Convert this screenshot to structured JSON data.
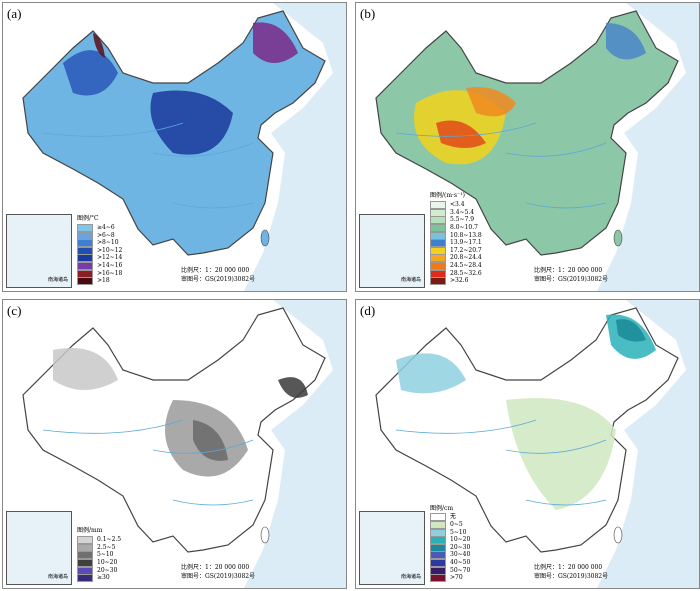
{
  "scale_text": "比例尺：1：20 000 000",
  "approval_text": "审图号：GS(2019)3082号",
  "inset_label": "南海诸岛",
  "panels": [
    {
      "label": "(a)",
      "legend_title": "图例/°C",
      "base": "#6fb5e3",
      "accent": [
        "#2a57b8",
        "#1a3a9e",
        "#7b2a8a",
        "#5a0f1a"
      ],
      "legend": [
        [
          "≥4~6",
          "#7cc6ec"
        ],
        [
          ">6~8",
          "#6aa3dd"
        ],
        [
          ">8~10",
          "#3f7fd0"
        ],
        [
          ">10~12",
          "#1f4fb0"
        ],
        [
          ">12~14",
          "#1a3aa0"
        ],
        [
          ">14~16",
          "#7a3aa8"
        ],
        [
          ">16~18",
          "#8a1e22"
        ],
        [
          ">18",
          "#4a0a10"
        ]
      ]
    },
    {
      "label": "(b)",
      "legend_title": "图例/(m·s⁻¹)",
      "base": "#8cc8a8",
      "accent": [
        "#f2d21a",
        "#f08a20",
        "#e04a1a",
        "#4a86c8"
      ],
      "legend": [
        [
          "<3.4",
          "#eaf5ea"
        ],
        [
          "3.4~5.4",
          "#d2ecd2"
        ],
        [
          "5.5~7.9",
          "#b6e0bc"
        ],
        [
          "8.0~10.7",
          "#7cc49a"
        ],
        [
          "10.8~13.8",
          "#7ac0e0"
        ],
        [
          "13.9~17.1",
          "#3f7fd0"
        ],
        [
          "17.2~20.7",
          "#f2d21a"
        ],
        [
          "20.8~24.4",
          "#f5a623"
        ],
        [
          "24.5~28.4",
          "#f07a1a"
        ],
        [
          "28.5~32.6",
          "#e02a1a"
        ],
        [
          ">32.6",
          "#7a1a10"
        ]
      ]
    },
    {
      "label": "(c)",
      "legend_title": "图例/mm",
      "base": "#ffffff",
      "accent": [
        "#c8c8c8",
        "#9a9a9a",
        "#6a6a6a",
        "#3a3a3a"
      ],
      "legend": [
        [
          "0.1~2.5",
          "#d4d4d4"
        ],
        [
          "2.5~5",
          "#aaaaaa"
        ],
        [
          "5~10",
          "#707070"
        ],
        [
          "10~20",
          "#404040"
        ],
        [
          "20~30",
          "#5a4ab8"
        ],
        [
          "≥30",
          "#3a2a7a"
        ]
      ]
    },
    {
      "label": "(d)",
      "legend_title": "图例/cm",
      "base": "#ffffff",
      "accent": [
        "#cfe8c0",
        "#8fd0e0",
        "#2ab0b8",
        "#1a8a98"
      ],
      "legend": [
        [
          "无",
          "#ffffff"
        ],
        [
          "0~5",
          "#cfe8c0"
        ],
        [
          "5~10",
          "#8fd0e0"
        ],
        [
          "10~20",
          "#2ab0b8"
        ],
        [
          "20~30",
          "#1a8a98"
        ],
        [
          "30~40",
          "#4a5ab8"
        ],
        [
          "40~50",
          "#2a3aa0"
        ],
        [
          "50~70",
          "#3a1a6a"
        ],
        [
          ">70",
          "#7a1030"
        ]
      ]
    }
  ]
}
